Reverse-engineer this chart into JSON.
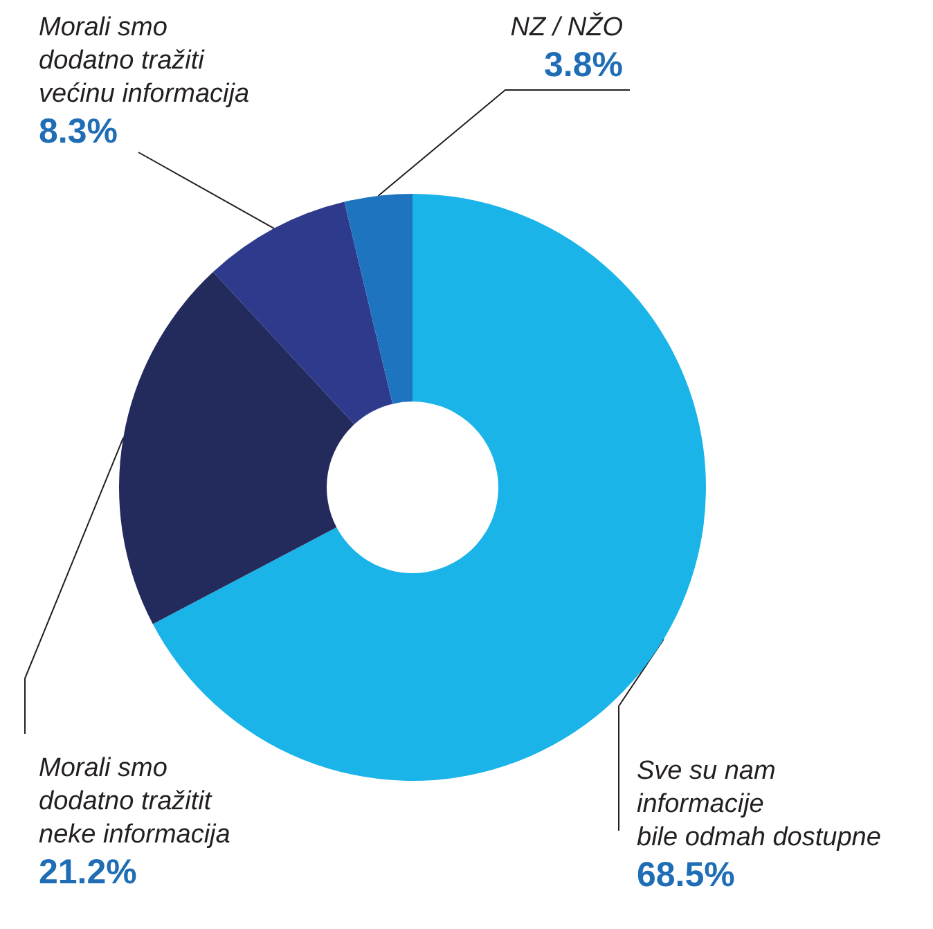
{
  "chart_data": {
    "type": "donut",
    "categories": [
      "Sve su nam\ninformacije\nbile odmah dostupne",
      "Morali smo\ndodatno tražitit\nneke informacija",
      "Morali smo\ndodatno tražiti\nvećinu informacija",
      "NZ / NŽO"
    ],
    "values": [
      68.5,
      21.2,
      8.3,
      3.8
    ],
    "value_labels": [
      "68.5%",
      "21.2%",
      "8.3%",
      "3.8%"
    ],
    "colors": [
      "#1ab4e8",
      "#232a5c",
      "#2e3a8c",
      "#1f74c0"
    ],
    "legend": false
  }
}
